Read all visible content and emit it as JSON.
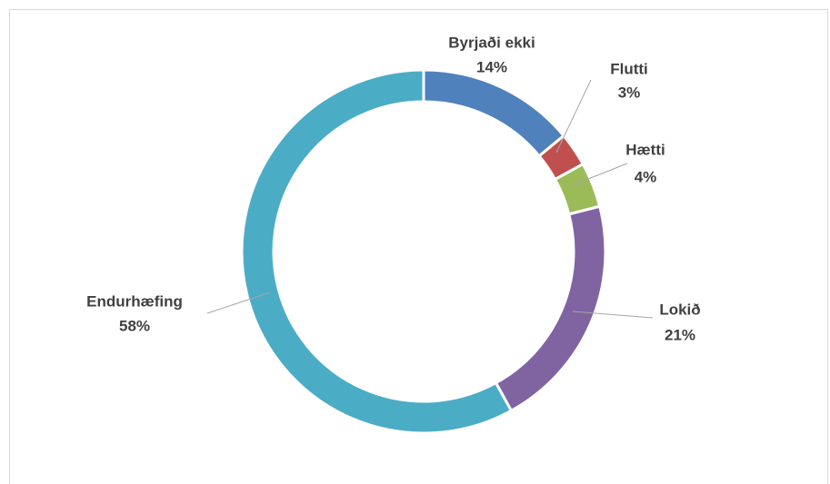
{
  "chart_data": {
    "type": "donut",
    "categories": [
      "Byrjaði ekki",
      "Flutti",
      "Hætti",
      "Lokið",
      "Endurhæfing"
    ],
    "values": [
      14,
      3,
      4,
      21,
      58
    ],
    "value_labels": [
      "14%",
      "3%",
      "4%",
      "21%",
      "58%"
    ],
    "colors": [
      "#4f81bd",
      "#c0504d",
      "#9bbb59",
      "#8064a2",
      "#4bacc6"
    ]
  }
}
